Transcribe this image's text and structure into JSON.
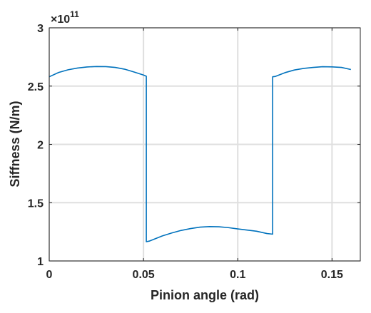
{
  "chart_data": {
    "type": "line",
    "xlabel": "Pinion angle (rad)",
    "ylabel": "Siffness (N/m)",
    "y_multiplier": "×10",
    "y_exponent": "11",
    "xlim": [
      0,
      0.165
    ],
    "ylim": [
      1,
      3
    ],
    "xticks": [
      0,
      0.05,
      0.1,
      0.15
    ],
    "xtick_labels": [
      "0",
      "0.05",
      "0.1",
      "0.15"
    ],
    "yticks": [
      1,
      1.5,
      2,
      2.5,
      3
    ],
    "ytick_labels": [
      "1",
      "1.5",
      "2",
      "2.5",
      "3"
    ],
    "grid": true,
    "series": [
      {
        "color": "#0072BD",
        "x": [
          0,
          0.005,
          0.01,
          0.015,
          0.02,
          0.025,
          0.03,
          0.035,
          0.04,
          0.045,
          0.05,
          0.0515,
          0.0515,
          0.053,
          0.06,
          0.065,
          0.07,
          0.075,
          0.08,
          0.085,
          0.09,
          0.095,
          0.1,
          0.105,
          0.11,
          0.1155,
          0.1185,
          0.1185,
          0.12,
          0.125,
          0.13,
          0.135,
          0.14,
          0.145,
          0.15,
          0.155,
          0.16
        ],
        "y": [
          2.58,
          2.617,
          2.64,
          2.655,
          2.664,
          2.668,
          2.667,
          2.66,
          2.645,
          2.621,
          2.595,
          2.585,
          1.165,
          1.17,
          1.215,
          1.24,
          1.262,
          1.278,
          1.29,
          1.295,
          1.293,
          1.286,
          1.275,
          1.265,
          1.255,
          1.235,
          1.23,
          2.58,
          2.583,
          2.615,
          2.638,
          2.652,
          2.66,
          2.666,
          2.665,
          2.66,
          2.642
        ]
      }
    ]
  }
}
